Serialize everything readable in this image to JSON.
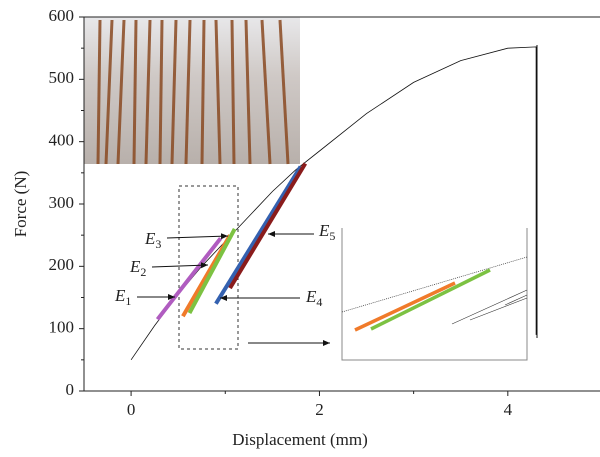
{
  "chart_data": {
    "type": "line",
    "xlabel": "Displacement (mm)",
    "ylabel": "Force (N)",
    "xlim": [
      -0.5,
      5
    ],
    "ylim": [
      0,
      600
    ],
    "xticks": [
      0,
      2,
      4
    ],
    "yticks": [
      0,
      100,
      200,
      300,
      400,
      500,
      600
    ],
    "xminorticks": [
      1,
      3
    ],
    "yminorticks": [
      50,
      150,
      250,
      350,
      450,
      550
    ],
    "series": [
      {
        "color": "#111111",
        "linewidth": 0.8,
        "x": [
          0,
          0.25,
          0.5,
          0.75,
          1.0,
          1.25,
          1.5,
          1.75,
          2.0,
          2.5,
          3.0,
          3.5,
          4.0,
          4.3,
          4.3
        ],
        "values": [
          50,
          105,
          155,
          200,
          240,
          280,
          320,
          355,
          385,
          445,
          495,
          530,
          550,
          552,
          90
        ]
      },
      {
        "color": "#b05cc0",
        "linewidth": 4,
        "x": [
          0.28,
          0.95
        ],
        "values": [
          115,
          245
        ]
      },
      {
        "color": "#f07a2a",
        "linewidth": 4,
        "x": [
          0.55,
          1.05
        ],
        "values": [
          120,
          250
        ]
      },
      {
        "color": "#7cc242",
        "linewidth": 4,
        "x": [
          0.62,
          1.1
        ],
        "values": [
          125,
          260
        ]
      },
      {
        "color": "#3461b0",
        "linewidth": 4,
        "x": [
          0.9,
          1.8
        ],
        "values": [
          140,
          360
        ]
      },
      {
        "color": "#8a1c1c",
        "linewidth": 4,
        "x": [
          1.05,
          1.85
        ],
        "values": [
          165,
          365
        ]
      }
    ],
    "annotations": [
      {
        "text": "E",
        "sub": "3"
      },
      {
        "text": "E",
        "sub": "2"
      },
      {
        "text": "E",
        "sub": "1"
      },
      {
        "text": "E",
        "sub": "4"
      },
      {
        "text": "E",
        "sub": "5"
      }
    ]
  }
}
